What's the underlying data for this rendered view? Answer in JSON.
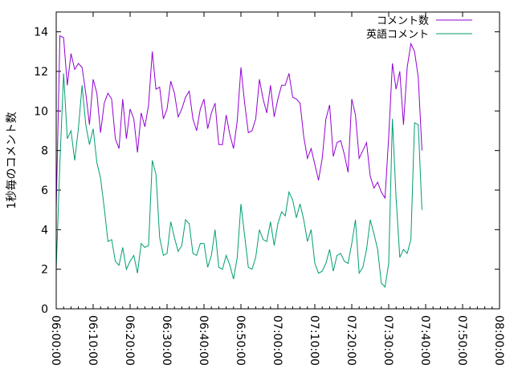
{
  "chart_data": {
    "type": "line",
    "title": "",
    "xlabel": "",
    "ylabel": "1秒毎のコメント数",
    "xlim": [
      "06:00:00",
      "08:00:00"
    ],
    "ylim": [
      0,
      15
    ],
    "x_ticks": [
      "06:00:00",
      "06:10:00",
      "06:20:00",
      "06:30:00",
      "06:40:00",
      "06:50:00",
      "07:00:00",
      "07:10:00",
      "07:20:00",
      "07:30:00",
      "07:40:00",
      "07:50:00",
      "08:00:00"
    ],
    "y_ticks": [
      0,
      2,
      4,
      6,
      8,
      10,
      12,
      14
    ],
    "legend_position": "top-right",
    "x_start": "06:00:00",
    "x_step_seconds": 60,
    "series": [
      {
        "name": "コメント数",
        "color": "#9400d3",
        "values": [
          5.0,
          13.8,
          13.7,
          11.3,
          12.9,
          12.1,
          12.4,
          12.2,
          10.9,
          9.3,
          11.6,
          10.9,
          8.9,
          10.4,
          10.9,
          10.6,
          8.6,
          8.1,
          10.6,
          8.6,
          10.1,
          9.6,
          7.9,
          9.9,
          9.2,
          10.3,
          13.0,
          11.1,
          11.2,
          9.6,
          10.1,
          11.5,
          10.9,
          9.7,
          10.1,
          10.7,
          11.0,
          9.6,
          9.0,
          10.1,
          10.6,
          9.1,
          9.9,
          10.4,
          8.3,
          8.3,
          9.8,
          8.8,
          8.1,
          9.5,
          12.2,
          10.4,
          8.9,
          9.0,
          9.6,
          11.6,
          10.6,
          9.9,
          11.3,
          9.7,
          10.6,
          11.3,
          11.3,
          11.9,
          10.7,
          10.6,
          10.4,
          8.7,
          7.6,
          8.1,
          7.3,
          6.5,
          7.6,
          9.6,
          10.3,
          7.7,
          8.4,
          8.5,
          7.8,
          6.9,
          10.6,
          9.8,
          7.6,
          8.0,
          8.4,
          6.7,
          6.1,
          6.4,
          5.9,
          5.6,
          8.7,
          12.4,
          11.1,
          12.0,
          9.3,
          12.2,
          13.4,
          13.0,
          11.7,
          8.0
        ]
      },
      {
        "name": "英語コメント",
        "color": "#009e73",
        "values": [
          2.0,
          7.4,
          11.9,
          8.6,
          9.0,
          7.5,
          9.1,
          11.3,
          9.3,
          8.3,
          9.1,
          7.4,
          6.6,
          5.1,
          3.4,
          3.5,
          2.4,
          2.2,
          3.1,
          2.0,
          2.4,
          2.7,
          1.8,
          3.3,
          3.1,
          3.2,
          7.5,
          6.8,
          3.6,
          2.7,
          2.8,
          4.4,
          3.6,
          2.9,
          3.2,
          4.5,
          4.3,
          2.8,
          2.7,
          3.3,
          3.3,
          2.1,
          2.7,
          4.0,
          2.1,
          2.0,
          2.7,
          2.2,
          1.5,
          2.6,
          5.3,
          3.7,
          2.1,
          2.0,
          2.6,
          4.0,
          3.5,
          3.4,
          4.4,
          3.2,
          4.3,
          4.9,
          4.7,
          5.9,
          5.5,
          4.6,
          5.3,
          4.5,
          3.4,
          4.0,
          2.3,
          1.8,
          1.9,
          2.3,
          3.0,
          1.9,
          2.7,
          2.8,
          2.4,
          2.3,
          3.3,
          4.5,
          1.8,
          2.1,
          3.0,
          4.5,
          3.8,
          3.0,
          1.3,
          1.1,
          2.3,
          9.6,
          5.6,
          2.6,
          3.0,
          2.8,
          3.5,
          9.4,
          9.3,
          5.0
        ]
      }
    ]
  }
}
